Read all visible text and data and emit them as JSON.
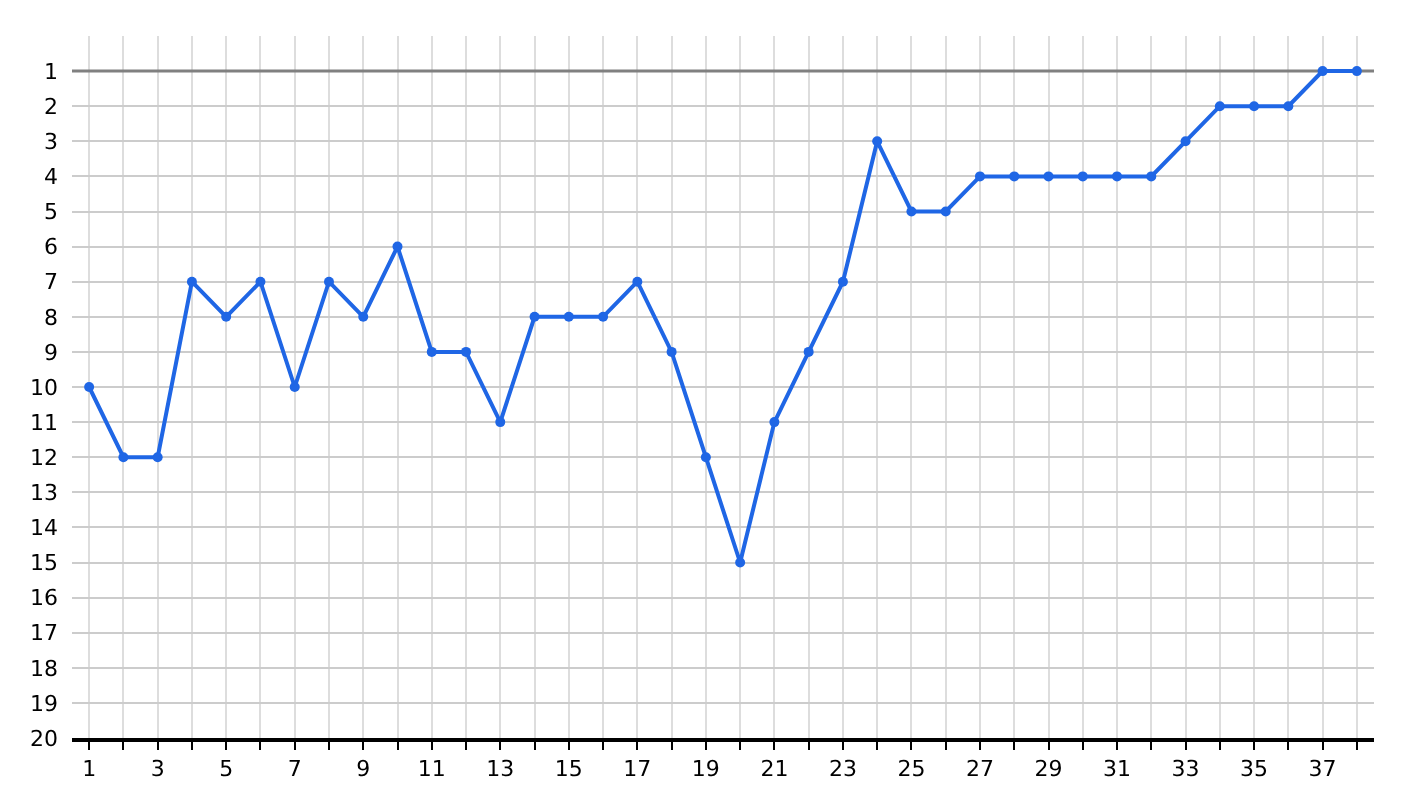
{
  "chart_data": {
    "type": "line",
    "x": [
      1,
      2,
      3,
      4,
      5,
      6,
      7,
      8,
      9,
      10,
      11,
      12,
      13,
      14,
      15,
      16,
      17,
      18,
      19,
      20,
      21,
      22,
      23,
      24,
      25,
      26,
      27,
      28,
      29,
      30,
      31,
      32,
      33,
      34,
      35,
      36,
      37,
      38
    ],
    "series": [
      {
        "color": "#1f66e5",
        "values": [
          10,
          12,
          12,
          7,
          8,
          7,
          10,
          7,
          8,
          6,
          9,
          9,
          11,
          8,
          8,
          8,
          7,
          9,
          12,
          15,
          11,
          9,
          7,
          3,
          5,
          5,
          4,
          4,
          4,
          4,
          4,
          4,
          3,
          2,
          2,
          2,
          1,
          1
        ]
      }
    ],
    "xlim": [
      0.5,
      38.5
    ],
    "xticks": [
      1,
      {
        "value": 2,
        "label": null
      },
      3,
      {
        "value": 4,
        "label": null
      },
      5,
      {
        "value": 6,
        "label": null
      },
      7,
      {
        "value": 8,
        "label": null
      },
      9,
      {
        "value": 10,
        "label": null
      },
      11,
      {
        "value": 12,
        "label": null
      },
      13,
      {
        "value": 14,
        "label": null
      },
      15,
      {
        "value": 16,
        "label": null
      },
      17,
      {
        "value": 18,
        "label": null
      },
      19,
      {
        "value": 20,
        "label": null
      },
      21,
      {
        "value": 22,
        "label": null
      },
      23,
      {
        "value": 24,
        "label": null
      },
      25,
      {
        "value": 26,
        "label": null
      },
      27,
      {
        "value": 28,
        "label": null
      },
      29,
      {
        "value": 30,
        "label": null
      },
      31,
      {
        "value": 32,
        "label": null
      },
      33,
      {
        "value": 34,
        "label": null
      },
      35,
      {
        "value": 36,
        "label": null
      },
      37,
      {
        "value": 38,
        "label": null
      }
    ],
    "ylim": [
      20,
      0
    ],
    "yticks": [
      1,
      2,
      3,
      4,
      5,
      6,
      7,
      8,
      9,
      10,
      11,
      12,
      13,
      14,
      15,
      16,
      17,
      18,
      19,
      20
    ],
    "ref_lines": [
      {
        "axis": "y",
        "value": 1,
        "color": "#808080"
      }
    ],
    "grid": true,
    "marker": "circle",
    "line_style": "solid"
  }
}
